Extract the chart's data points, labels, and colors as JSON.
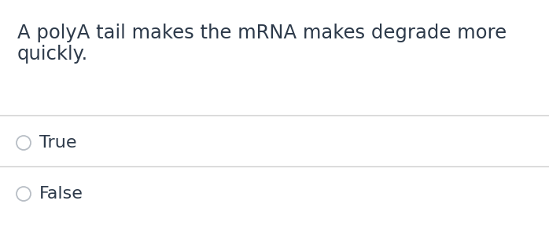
{
  "background_color": "#ffffff",
  "question_text_line1": "A polyA tail makes the mRNA makes degrade more",
  "question_text_line2": "quickly.",
  "options": [
    "True",
    "False"
  ],
  "text_color": "#2d3a4a",
  "line_color": "#d0d0d0",
  "circle_color": "#b8bec5",
  "question_fontsize": 17.5,
  "option_fontsize": 16,
  "figsize": [
    6.98,
    3.02
  ],
  "dpi": 100
}
